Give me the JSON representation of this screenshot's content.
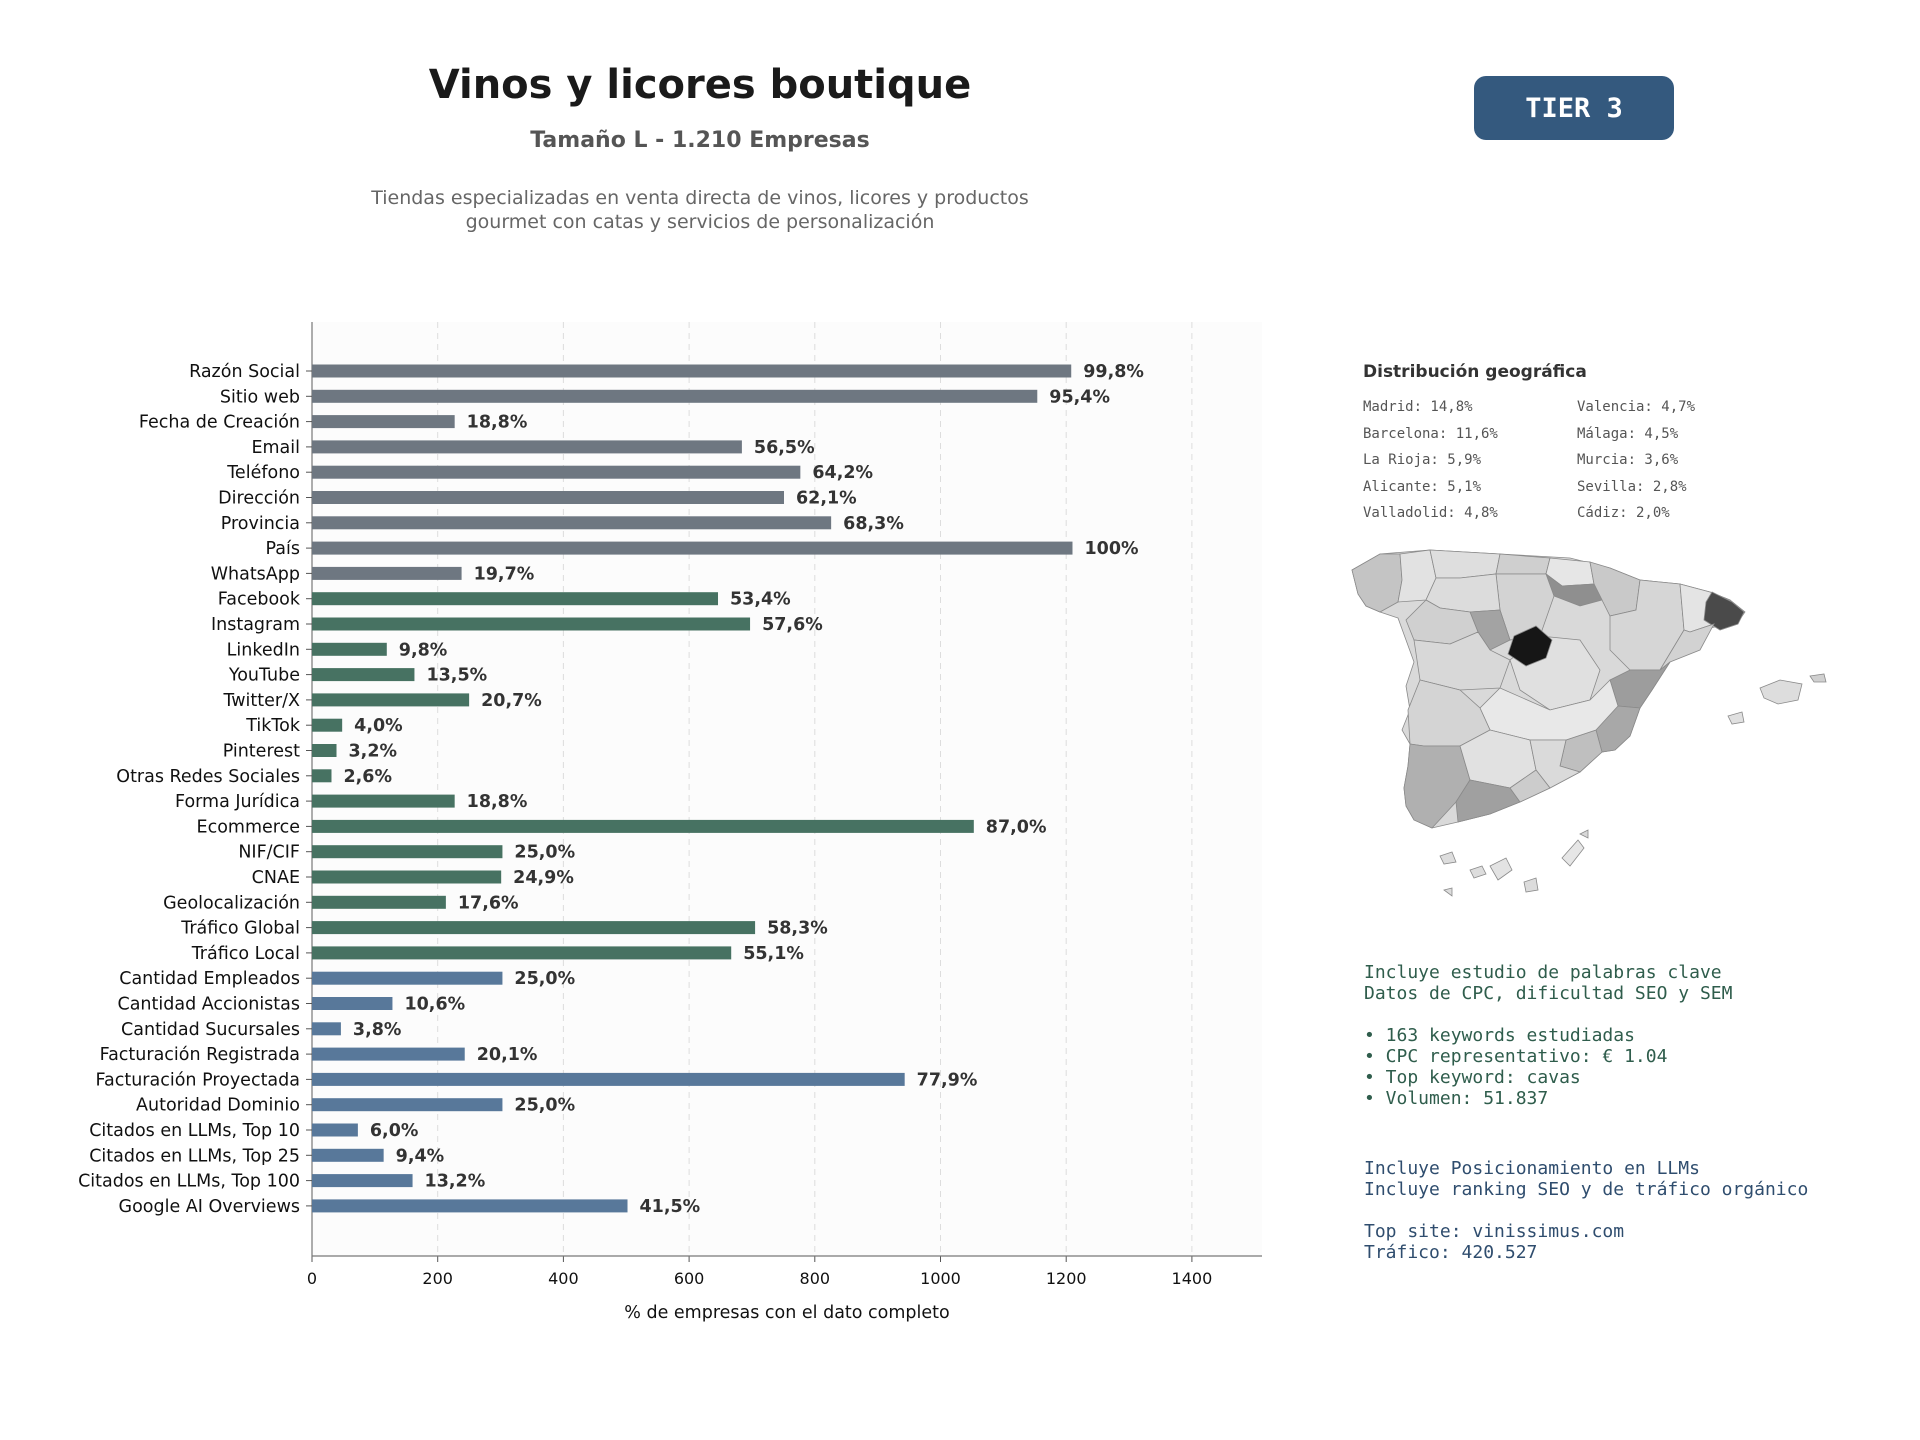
{
  "header": {
    "title": "Vinos y licores boutique",
    "subtitle": "Tamaño L - 1.210 Empresas",
    "description_lines": [
      "Tiendas especializadas en venta directa de vinos, licores y productos",
      "gourmet con catas y servicios de personalización"
    ],
    "tier_badge": "TIER 3"
  },
  "chart_data": {
    "type": "bar",
    "orientation": "horizontal",
    "title": "",
    "xlabel": "% de empresas con el dato completo",
    "ylabel": "",
    "xlim": [
      0,
      1510
    ],
    "xticks": [
      0,
      200,
      400,
      600,
      800,
      1000,
      1200,
      1400
    ],
    "grid": "vertical dashed",
    "colors": {
      "grey": "#6e7781",
      "green": "#477262",
      "blue": "#58789a"
    },
    "categories": [
      "Razón Social",
      "Sitio web",
      "Fecha de Creación",
      "Email",
      "Teléfono",
      "Dirección",
      "Provincia",
      "País",
      "WhatsApp",
      "Facebook",
      "Instagram",
      "LinkedIn",
      "YouTube",
      "Twitter/X",
      "TikTok",
      "Pinterest",
      "Otras Redes Sociales",
      "Forma Jurídica",
      "Ecommerce",
      "NIF/CIF",
      "CNAE",
      "Geolocalización",
      "Tráfico Global",
      "Tráfico Local",
      "Cantidad Empleados",
      "Cantidad Accionistas",
      "Cantidad Sucursales",
      "Facturación Registrada",
      "Facturación Proyectada",
      "Autoridad Dominio",
      "Citados en LLMs, Top 10",
      "Citados en LLMs, Top 25",
      "Citados en LLMs, Top 100",
      "Google AI Overviews"
    ],
    "values": [
      1208,
      1154,
      227,
      684,
      777,
      751,
      826,
      1210,
      238,
      646,
      697,
      119,
      163,
      250,
      48,
      39,
      31,
      227,
      1053,
      303,
      301,
      213,
      705,
      667,
      303,
      128,
      46,
      243,
      943,
      303,
      73,
      114,
      160,
      502
    ],
    "labels": [
      "99,8%",
      "95,4%",
      "18,8%",
      "56,5%",
      "64,2%",
      "62,1%",
      "68,3%",
      "100%",
      "19,7%",
      "53,4%",
      "57,6%",
      "9,8%",
      "13,5%",
      "20,7%",
      "4,0%",
      "3,2%",
      "2,6%",
      "18,8%",
      "87,0%",
      "25,0%",
      "24,9%",
      "17,6%",
      "58,3%",
      "55,1%",
      "25,0%",
      "10,6%",
      "3,8%",
      "20,1%",
      "77,9%",
      "25,0%",
      "6,0%",
      "9,4%",
      "13,2%",
      "41,5%"
    ],
    "groups": [
      "grey",
      "grey",
      "grey",
      "grey",
      "grey",
      "grey",
      "grey",
      "grey",
      "grey",
      "green",
      "green",
      "green",
      "green",
      "green",
      "green",
      "green",
      "green",
      "green",
      "green",
      "green",
      "green",
      "green",
      "green",
      "green",
      "blue",
      "blue",
      "blue",
      "blue",
      "blue",
      "blue",
      "blue",
      "blue",
      "blue",
      "blue"
    ]
  },
  "geo": {
    "title": "Distribución geográfica",
    "items": [
      "Madrid: 14,8%",
      "Valencia: 4,7%",
      "Barcelona: 11,6%",
      "Málaga: 4,5%",
      "La Rioja: 5,9%",
      "Murcia: 3,6%",
      "Alicante: 5,1%",
      "Sevilla: 2,8%",
      "Valladolid: 4,8%",
      "Cádiz: 2,0%"
    ]
  },
  "seo_info": {
    "lines": [
      "Incluye estudio de palabras clave",
      "Datos de CPC, dificultad SEO y SEM",
      "",
      "• 163 keywords estudiadas",
      "• CPC representativo: € 1.04",
      "• Top keyword: cavas",
      "• Volumen: 51.837"
    ]
  },
  "llm_info": {
    "lines": [
      "Incluye Posicionamiento en LLMs",
      "Incluye ranking SEO y de tráfico orgánico",
      "",
      "Top site: vinissimus.com",
      "Tráfico: 420.527"
    ]
  }
}
